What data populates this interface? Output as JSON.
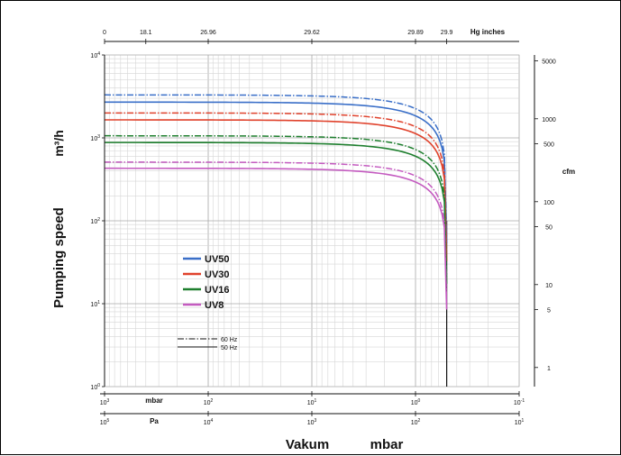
{
  "chart_data": {
    "type": "line",
    "ylabel": "Pumping speed",
    "ylabel_unit": "m³/h",
    "xlabel": "Vakum",
    "xlabel_unit": "mbar",
    "x_scale": "log",
    "y_scale": "log",
    "xlim": [
      1000,
      0.1
    ],
    "ylim": [
      1,
      10000
    ],
    "grid": true,
    "x_ticks": [
      {
        "value": 1000,
        "exp": "3"
      },
      {
        "value": 100,
        "exp": "2"
      },
      {
        "value": 10,
        "exp": "1"
      },
      {
        "value": 1,
        "exp": "0"
      },
      {
        "value": 0.1,
        "exp": "-1"
      }
    ],
    "x_unit_mbar": "mbar",
    "pa_axis": {
      "unit": "Pa",
      "ticks": [
        {
          "value": 1000,
          "exp": "5"
        },
        {
          "value": 100,
          "exp": "4"
        },
        {
          "value": 10,
          "exp": "3"
        },
        {
          "value": 1,
          "exp": "2"
        },
        {
          "value": 0.1,
          "exp": "1"
        }
      ]
    },
    "y_ticks": [
      {
        "value": 1,
        "exp": "0"
      },
      {
        "value": 10,
        "exp": "1"
      },
      {
        "value": 100,
        "exp": "2"
      },
      {
        "value": 1000,
        "exp": "3"
      },
      {
        "value": 10000,
        "exp": "4"
      }
    ],
    "top_axis": {
      "unit": "Hg inches",
      "ticks": [
        {
          "label": "0",
          "mbar": 1000
        },
        {
          "label": "18.1",
          "mbar": 400
        },
        {
          "label": "26.96",
          "mbar": 100
        },
        {
          "label": "29.62",
          "mbar": 10
        },
        {
          "label": "29.89",
          "mbar": 1
        },
        {
          "label": "29.9",
          "mbar": 0.5
        }
      ]
    },
    "right_axis": {
      "unit": "cfm",
      "ticks": [
        {
          "label": "5000",
          "m3h": 8500
        },
        {
          "label": "1000",
          "m3h": 1700
        },
        {
          "label": "500",
          "m3h": 850
        },
        {
          "label": "100",
          "m3h": 170
        },
        {
          "label": "50",
          "m3h": 85
        },
        {
          "label": "10",
          "m3h": 17
        },
        {
          "label": "5",
          "m3h": 8.5
        },
        {
          "label": "1",
          "m3h": 1.7
        }
      ]
    },
    "ultimate_pressure_mbar": 0.5,
    "series": [
      {
        "name": "UV50",
        "color": "#3a6fc8",
        "hz50": 2700,
        "hz60": 3300
      },
      {
        "name": "UV30",
        "color": "#e0422c",
        "hz50": 1650,
        "hz60": 2000
      },
      {
        "name": "UV16",
        "color": "#1e7f2e",
        "hz50": 880,
        "hz60": 1060
      },
      {
        "name": "UV8",
        "color": "#c45bc0",
        "hz50": 430,
        "hz60": 510
      }
    ],
    "line_legend": [
      {
        "label": "60 Hz",
        "style": "dashdot"
      },
      {
        "label": "50 Hz",
        "style": "solid"
      }
    ]
  }
}
